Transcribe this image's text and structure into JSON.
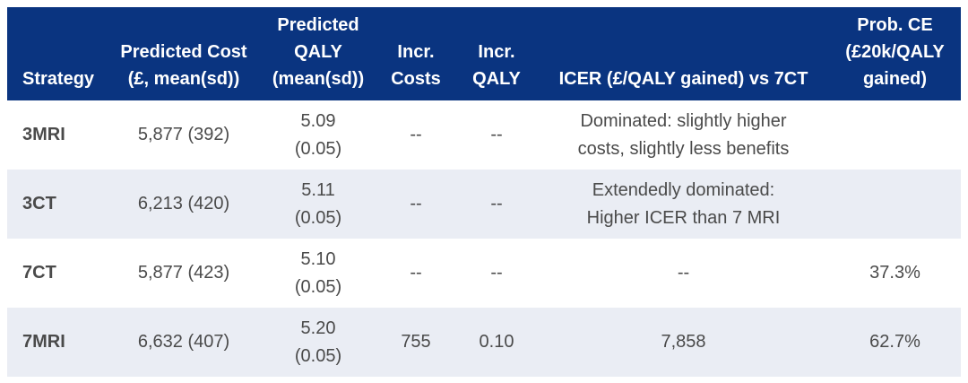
{
  "colors": {
    "header_background": "#0a3480",
    "header_text": "#ffffff",
    "row_background": "#ffffff",
    "alt_row_background": "#eaedf4",
    "body_text": "#4a4a4a"
  },
  "chart_data": {
    "type": "table",
    "columns": [
      {
        "id": "strategy",
        "lines": [
          "Strategy"
        ]
      },
      {
        "id": "predicted_cost",
        "lines": [
          "Predicted Cost",
          "(£, mean(sd))"
        ]
      },
      {
        "id": "predicted_qaly",
        "lines": [
          "Predicted",
          "QALY",
          "(mean(sd))"
        ]
      },
      {
        "id": "incr_costs",
        "lines": [
          "Incr.",
          "Costs"
        ]
      },
      {
        "id": "incr_qaly",
        "lines": [
          "Incr.",
          "QALY"
        ]
      },
      {
        "id": "icer",
        "lines": [
          "ICER (£/QALY gained) vs 7CT"
        ]
      },
      {
        "id": "prob_ce",
        "lines": [
          "Prob. CE",
          "(£20k/QALY",
          "gained)"
        ]
      }
    ],
    "rows": [
      {
        "strategy": "3MRI",
        "predicted_cost": "5,877 (392)",
        "predicted_qaly": [
          "5.09",
          "(0.05)"
        ],
        "incr_costs": "--",
        "incr_qaly": "--",
        "icer": [
          "Dominated: slightly higher",
          "costs, slightly less benefits"
        ],
        "prob_ce": ""
      },
      {
        "strategy": "3CT",
        "predicted_cost": "6,213 (420)",
        "predicted_qaly": [
          "5.11",
          "(0.05)"
        ],
        "incr_costs": "--",
        "incr_qaly": "--",
        "icer": [
          "Extendedly dominated:",
          "Higher ICER than 7 MRI"
        ],
        "prob_ce": ""
      },
      {
        "strategy": "7CT",
        "predicted_cost": "5,877 (423)",
        "predicted_qaly": [
          "5.10",
          "(0.05)"
        ],
        "incr_costs": "--",
        "incr_qaly": "--",
        "icer": [
          "--"
        ],
        "prob_ce": "37.3%"
      },
      {
        "strategy": "7MRI",
        "predicted_cost": "6,632 (407)",
        "predicted_qaly": [
          "5.20",
          "(0.05)"
        ],
        "incr_costs": "755",
        "incr_qaly": "0.10",
        "icer": [
          "7,858"
        ],
        "prob_ce": "62.7%"
      }
    ]
  }
}
